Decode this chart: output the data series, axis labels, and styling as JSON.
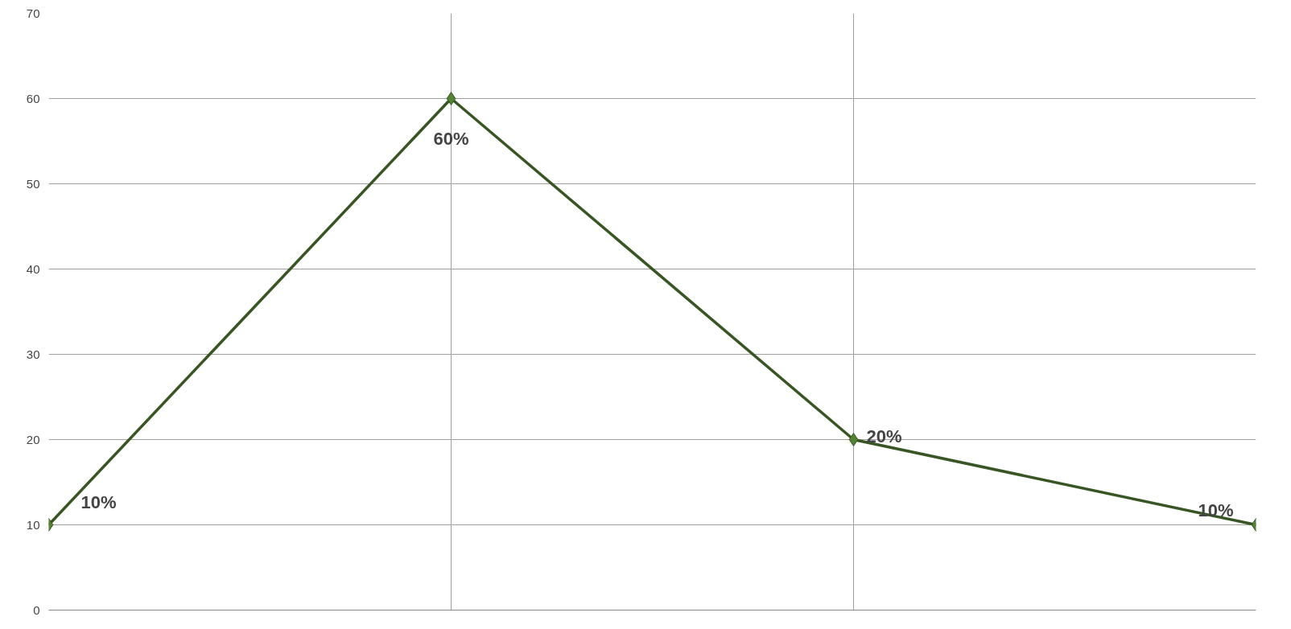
{
  "chart_data": {
    "type": "line",
    "categories": [
      null,
      null,
      null,
      null
    ],
    "series": [
      {
        "color": "#375623",
        "values": [
          10,
          60,
          20,
          10
        ],
        "value_labels": [
          "10%",
          "60%",
          "20%",
          "10%"
        ]
      }
    ],
    "ylim": [
      0,
      70
    ],
    "yticks": [
      0,
      10,
      20,
      30,
      40,
      50,
      60,
      70
    ],
    "grid": true,
    "marker": "diamond",
    "line_style": "solid",
    "tick_labels": "y"
  }
}
